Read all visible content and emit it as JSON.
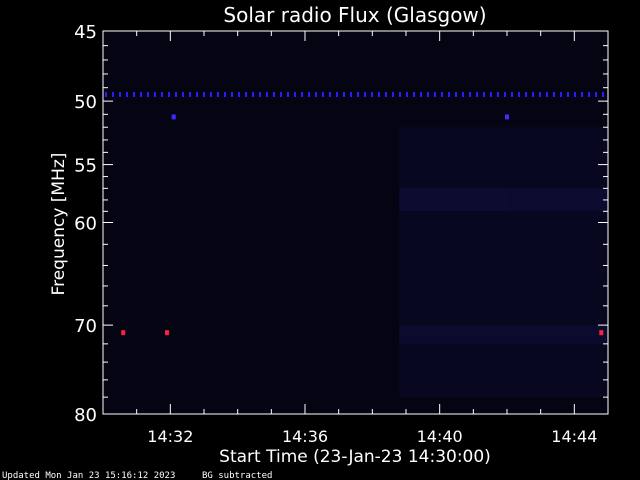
{
  "chart_data": {
    "type": "heatmap",
    "title": "Solar radio Flux (Glasgow)",
    "xlabel": "Start Time (23-Jan-23 14:30:00)",
    "ylabel": "Frequency [MHz]",
    "x_unit": "minutes after 14:30:00",
    "xlim": [
      0,
      15
    ],
    "ylim": [
      80,
      45
    ],
    "y_scale": "log",
    "x_ticks": [
      {
        "value": 2,
        "label": "14:32"
      },
      {
        "value": 6,
        "label": "14:36"
      },
      {
        "value": 10,
        "label": "14:40"
      },
      {
        "value": 14,
        "label": "14:44"
      }
    ],
    "y_ticks": [
      {
        "value": 45,
        "label": "45"
      },
      {
        "value": 50,
        "label": "50"
      },
      {
        "value": 55,
        "label": "55"
      },
      {
        "value": 60,
        "label": "60"
      },
      {
        "value": 70,
        "label": "70"
      },
      {
        "value": 80,
        "label": "80"
      }
    ],
    "y_minor_ticks": [
      46,
      47,
      48,
      49,
      51,
      52,
      53,
      54,
      56,
      57,
      58,
      59,
      62,
      64,
      66,
      68,
      72,
      74,
      76,
      78
    ],
    "x_minor_ticks": [
      1,
      3,
      4,
      5,
      7,
      8,
      9,
      11,
      12,
      13
    ],
    "intensity_regions": [
      {
        "t_start": 0,
        "t_end": 15,
        "f_low": 45,
        "f_high": 80,
        "level": 0.04
      },
      {
        "t_start": 8.8,
        "t_end": 15,
        "f_low": 52,
        "f_high": 78,
        "level": 0.16
      },
      {
        "t_start": 8.8,
        "t_end": 12,
        "f_low": 57,
        "f_high": 59,
        "level": 0.32
      },
      {
        "t_start": 12,
        "t_end": 15,
        "f_low": 57,
        "f_high": 59,
        "level": 0.3
      },
      {
        "t_start": 8.8,
        "t_end": 15,
        "f_low": 70,
        "f_high": 72,
        "level": 0.28
      }
    ],
    "interference_line": {
      "f": 49.5,
      "t_start": 0,
      "t_end": 15,
      "color": "#2b1bff"
    },
    "spikes": [
      {
        "t": 2.1,
        "f": 51.2,
        "color": "#3a2bff"
      },
      {
        "t": 12.0,
        "f": 51.2,
        "color": "#3a2bff"
      },
      {
        "t": 0.6,
        "f": 70.8,
        "color": "#ff2040"
      },
      {
        "t": 1.9,
        "f": 70.8,
        "color": "#ff2040"
      },
      {
        "t": 14.8,
        "f": 70.8,
        "color": "#ff2040"
      }
    ],
    "colors": {
      "background": "#000000",
      "axes": "#ffffff",
      "low": "#03030f",
      "high": "#1e1e7a"
    }
  },
  "footer": {
    "updated": "Updated Mon Jan 23 15:16:12 2023",
    "note": "BG subtracted"
  }
}
